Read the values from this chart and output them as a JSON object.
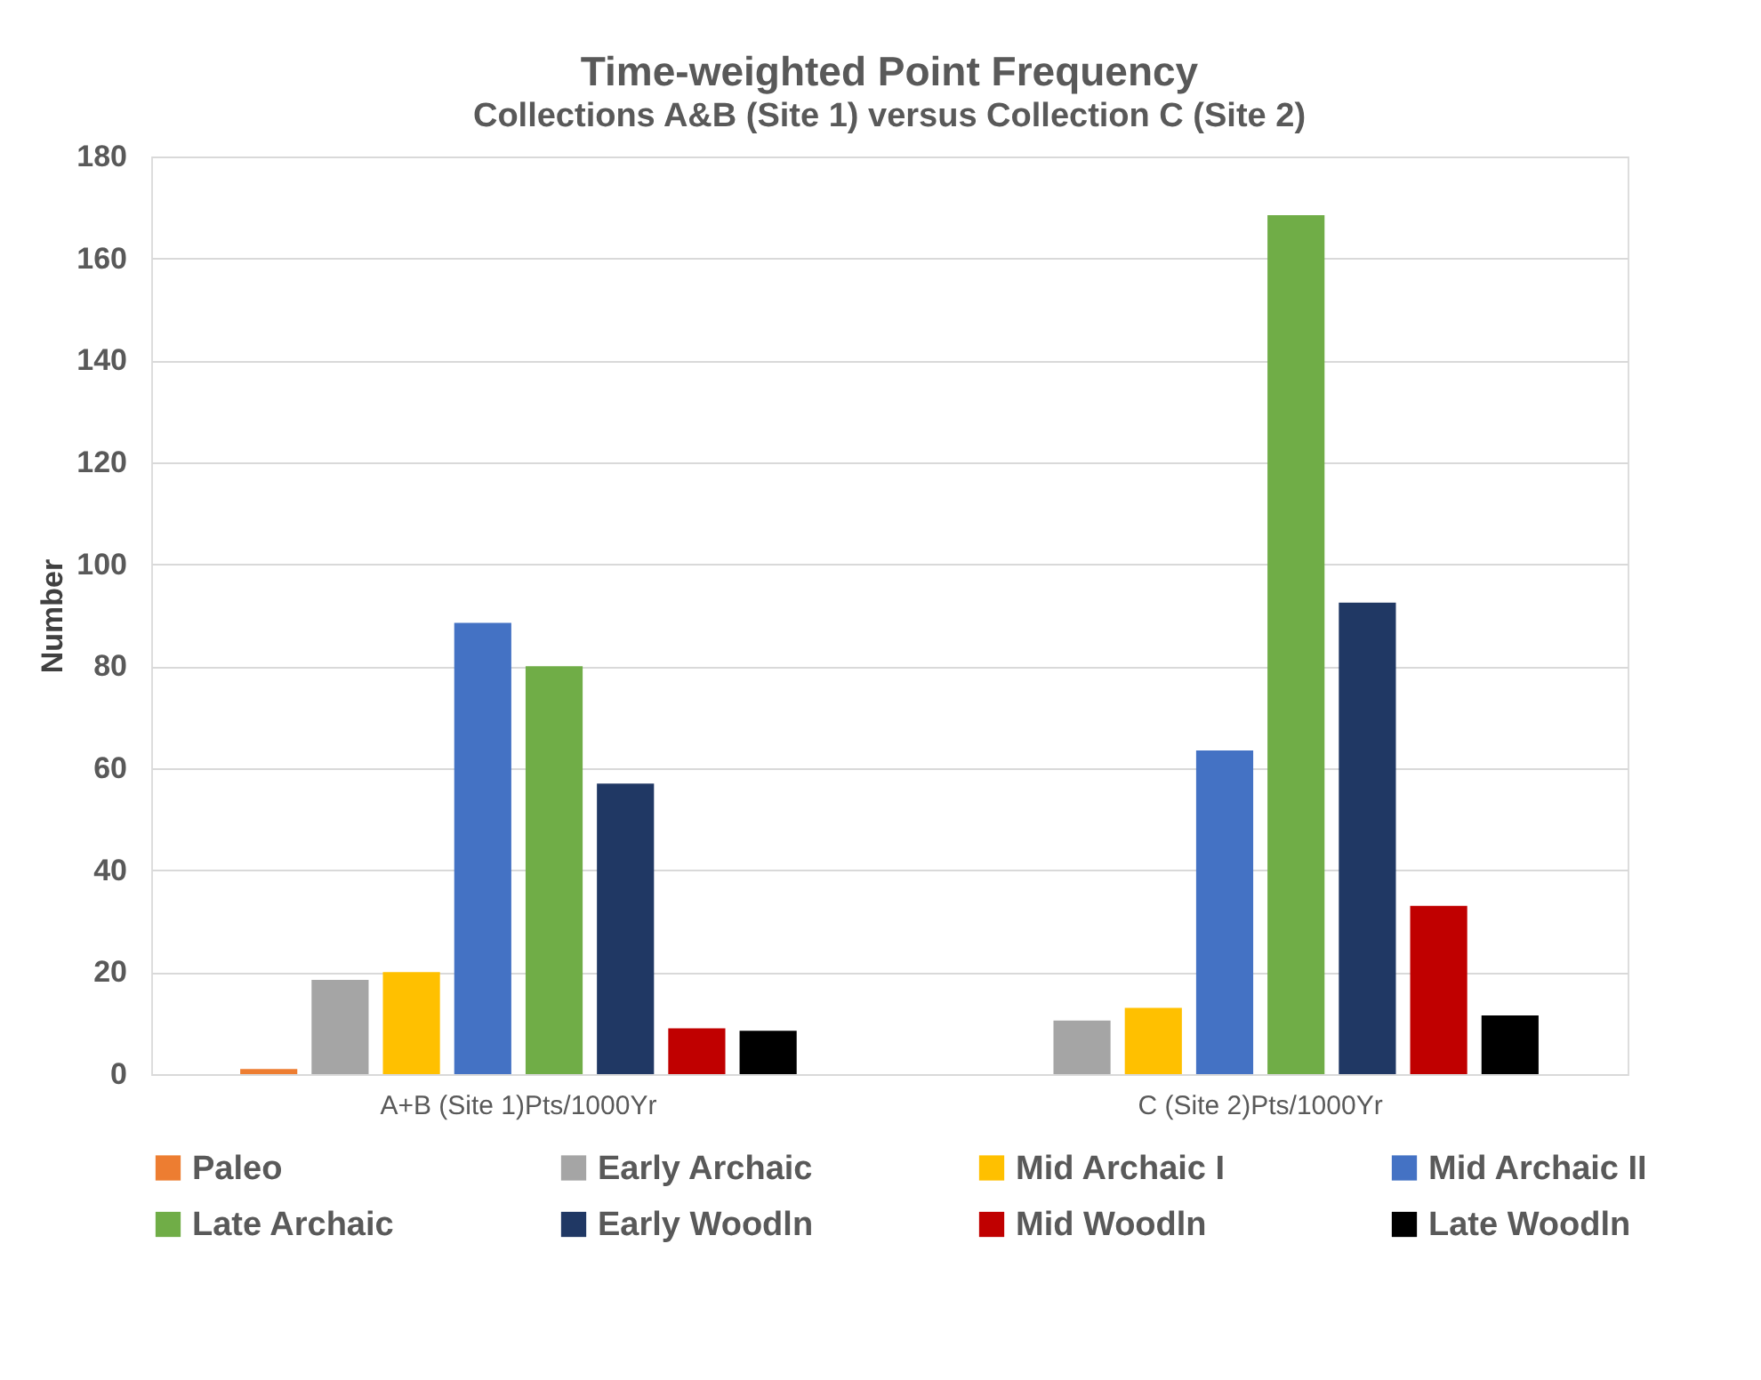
{
  "chart_data": {
    "type": "bar",
    "title": "Time-weighted Point Frequency",
    "subtitle": "Collections A&B (Site 1) versus Collection C (Site 2)",
    "ylabel": "Number",
    "categories": [
      "A+B (Site 1)Pts/1000Yr",
      "C (Site 2)Pts/1000Yr"
    ],
    "series": [
      {
        "name": "Paleo",
        "color": "#ed7d31",
        "values": [
          1,
          null
        ]
      },
      {
        "name": "Early Archaic",
        "color": "#a5a5a5",
        "values": [
          18.5,
          10.5
        ]
      },
      {
        "name": "Mid Archaic I",
        "color": "#ffc000",
        "values": [
          20,
          13
        ]
      },
      {
        "name": "Mid Archaic II",
        "color": "#4472c4",
        "values": [
          88.5,
          63.5
        ]
      },
      {
        "name": "Late Archaic",
        "color": "#70ad47",
        "values": [
          80,
          168.5
        ]
      },
      {
        "name": "Early Woodln",
        "color": "#203864",
        "values": [
          57,
          92.5
        ]
      },
      {
        "name": "Mid Woodln",
        "color": "#c00000",
        "values": [
          9,
          33
        ]
      },
      {
        "name": "Late Woodln",
        "color": "#000000",
        "values": [
          8.5,
          11.5
        ]
      }
    ],
    "ylim": [
      0,
      180
    ],
    "yticks": [
      0,
      20,
      40,
      60,
      80,
      100,
      120,
      140,
      160,
      180
    ],
    "grid": "y",
    "legend": "bottom"
  }
}
